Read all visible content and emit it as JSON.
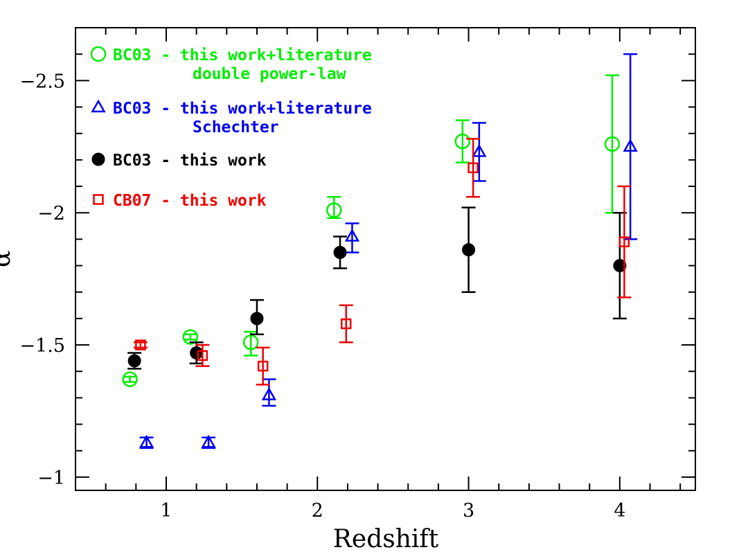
{
  "chart_data": {
    "type": "scatter",
    "xlabel": "Redshift",
    "ylabel": "α",
    "xlim": [
      0.4,
      4.5
    ],
    "ylim": [
      -0.95,
      -2.7
    ],
    "y_axis_inverted": true,
    "x_ticks": [
      "1",
      "2",
      "3",
      "4"
    ],
    "x_tick_values": [
      1,
      2,
      3,
      4
    ],
    "y_ticks": [
      "−2.5",
      "−2",
      "−1.5",
      "−1"
    ],
    "y_tick_values": [
      -2.5,
      -2.0,
      -1.5,
      -1.0
    ],
    "legend_placement": "top-left",
    "series": [
      {
        "name": "BC03 - this work+literature double power-law",
        "legend_lines": [
          "BC03 - this work+literature",
          "double power-law"
        ],
        "marker": "open-circle",
        "color": "#00ee00",
        "points": [
          {
            "x": 0.76,
            "y": -1.37,
            "err_lo": 0.01,
            "err_hi": 0.01
          },
          {
            "x": 1.16,
            "y": -1.53,
            "err_lo": 0.01,
            "err_hi": 0.01
          },
          {
            "x": 1.56,
            "y": -1.51,
            "err_lo": 0.05,
            "err_hi": 0.04
          },
          {
            "x": 2.11,
            "y": -2.01,
            "err_lo": 0.03,
            "err_hi": 0.05
          },
          {
            "x": 2.96,
            "y": -2.27,
            "err_lo": 0.08,
            "err_hi": 0.08
          },
          {
            "x": 3.95,
            "y": -2.26,
            "err_lo": 0.26,
            "err_hi": 0.26
          }
        ]
      },
      {
        "name": "BC03 - this work+literature Schechter",
        "legend_lines": [
          "BC03 - this work+literature",
          "Schechter"
        ],
        "marker": "open-triangle",
        "color": "#0000ee",
        "points": [
          {
            "x": 0.87,
            "y": -1.13,
            "err_lo": 0.02,
            "err_hi": 0.02
          },
          {
            "x": 1.28,
            "y": -1.13,
            "err_lo": 0.02,
            "err_hi": 0.02
          },
          {
            "x": 1.68,
            "y": -1.31,
            "err_lo": 0.04,
            "err_hi": 0.06
          },
          {
            "x": 2.23,
            "y": -1.91,
            "err_lo": 0.06,
            "err_hi": 0.05
          },
          {
            "x": 3.07,
            "y": -2.23,
            "err_lo": 0.11,
            "err_hi": 0.11
          },
          {
            "x": 4.07,
            "y": -2.25,
            "err_lo": 0.35,
            "err_hi": 0.35
          }
        ]
      },
      {
        "name": "BC03 - this work",
        "legend_lines": [
          "BC03 - this work"
        ],
        "marker": "filled-circle",
        "color": "#000000",
        "points": [
          {
            "x": 0.79,
            "y": -1.44,
            "err_lo": 0.03,
            "err_hi": 0.03
          },
          {
            "x": 1.2,
            "y": -1.47,
            "err_lo": 0.04,
            "err_hi": 0.04
          },
          {
            "x": 1.6,
            "y": -1.6,
            "err_lo": 0.06,
            "err_hi": 0.07
          },
          {
            "x": 2.15,
            "y": -1.85,
            "err_lo": 0.06,
            "err_hi": 0.06
          },
          {
            "x": 3.0,
            "y": -1.86,
            "err_lo": 0.16,
            "err_hi": 0.16
          },
          {
            "x": 4.0,
            "y": -1.8,
            "err_lo": 0.2,
            "err_hi": 0.2
          }
        ]
      },
      {
        "name": "CB07 - this work",
        "legend_lines": [
          "CB07 - this work"
        ],
        "marker": "open-square",
        "color": "#ee0000",
        "points": [
          {
            "x": 0.83,
            "y": -1.5,
            "err_lo": 0.01,
            "err_hi": 0.01
          },
          {
            "x": 1.24,
            "y": -1.46,
            "err_lo": 0.04,
            "err_hi": 0.04
          },
          {
            "x": 1.64,
            "y": -1.42,
            "err_lo": 0.07,
            "err_hi": 0.07
          },
          {
            "x": 2.19,
            "y": -1.58,
            "err_lo": 0.07,
            "err_hi": 0.07
          },
          {
            "x": 3.03,
            "y": -2.17,
            "err_lo": 0.11,
            "err_hi": 0.11
          },
          {
            "x": 4.03,
            "y": -1.89,
            "err_lo": 0.21,
            "err_hi": 0.21
          }
        ]
      }
    ]
  }
}
